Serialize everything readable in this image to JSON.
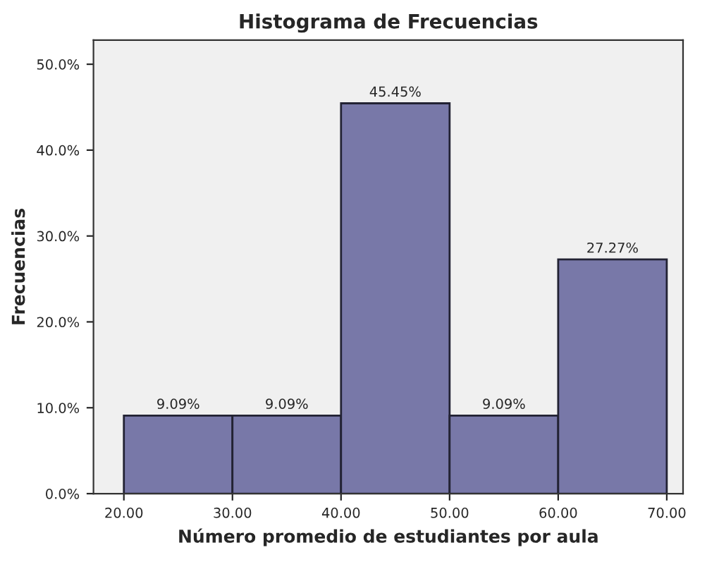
{
  "chart_data": {
    "type": "histogram",
    "title": "Histograma de Frecuencias",
    "xlabel": "Número promedio de estudiantes por aula",
    "ylabel": "Frecuencias",
    "bins": [
      20,
      30,
      40,
      50,
      60,
      70
    ],
    "values": [
      9.09,
      9.09,
      45.45,
      9.09,
      27.27
    ],
    "value_labels": [
      "9.09%",
      "9.09%",
      "45.45%",
      "9.09%",
      "27.27%"
    ],
    "color": "#7878a8",
    "xlim": [
      17.2,
      71.5
    ],
    "ylim": [
      0,
      52.8
    ],
    "xticks": [
      {
        "value": 20,
        "label": "20.00"
      },
      {
        "value": 30,
        "label": "30.00"
      },
      {
        "value": 40,
        "label": "40.00"
      },
      {
        "value": 50,
        "label": "50.00"
      },
      {
        "value": 60,
        "label": "60.00"
      },
      {
        "value": 70,
        "label": "70.00"
      }
    ],
    "yticks": [
      {
        "value": 0,
        "label": "0.0%"
      },
      {
        "value": 10,
        "label": "10.0%"
      },
      {
        "value": 20,
        "label": "20.0%"
      },
      {
        "value": 30,
        "label": "30.0%"
      },
      {
        "value": 40,
        "label": "40.0%"
      },
      {
        "value": 50,
        "label": "50.0%"
      }
    ],
    "grid": false,
    "legend": false
  }
}
